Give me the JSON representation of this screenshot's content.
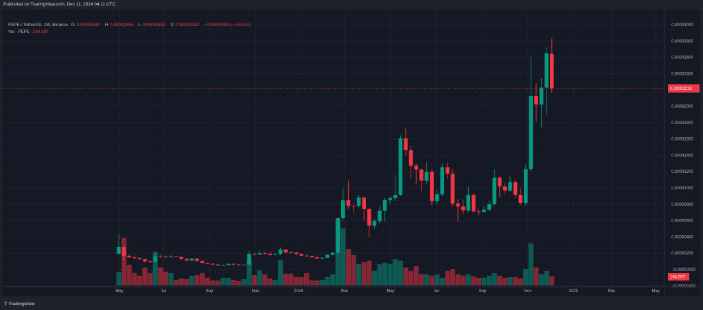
{
  "published": "Published on TradingView.com, Dec 11, 2024 04:11 UTC",
  "legend": {
    "symbol": "PEPE / TetherUS, 1W, Binance",
    "o_label": "O",
    "o": "0.00002642",
    "h_label": "H",
    "h": "0.00002836",
    "l_label": "L",
    "l": "0.00002162",
    "c_label": "C",
    "c": "0.00002219",
    "change": "−0.00000423 (−16.01%)",
    "vol_label": "Vol · PEPE",
    "vol": "164.39T"
  },
  "price_axis": {
    "ticks": [
      {
        "value": 3e-05,
        "label": "0.00003000"
      },
      {
        "value": 2.8e-05,
        "label": "0.00002800"
      },
      {
        "value": 2.6e-05,
        "label": "0.00002600"
      },
      {
        "value": 2.4e-05,
        "label": "0.00002400"
      },
      {
        "value": 2e-05,
        "label": "0.00002000"
      },
      {
        "value": 1.8e-05,
        "label": "0.00001800"
      },
      {
        "value": 1.6e-05,
        "label": "0.00001600"
      },
      {
        "value": 1.4e-05,
        "label": "0.00001400"
      },
      {
        "value": 1.2e-05,
        "label": "0.00001200"
      },
      {
        "value": 1e-05,
        "label": "0.00001000"
      },
      {
        "value": 8e-06,
        "label": "0.00000800"
      },
      {
        "value": 6e-06,
        "label": "0.00000600"
      },
      {
        "value": 4e-06,
        "label": "0.00000400"
      },
      {
        "value": 2e-06,
        "label": "0.00000200"
      },
      {
        "value": 0,
        "label": "−0.00000000"
      },
      {
        "value": -2e-06,
        "label": "−0.00000200"
      }
    ],
    "last_price": 2.219e-05,
    "last_price_label": "0.00002219",
    "volume_label": "164.39T"
  },
  "time_axis": {
    "ticks": [
      "May",
      "Jul",
      "Sep",
      "Nov",
      "2024",
      "Mar",
      "May",
      "Jul",
      "Sep",
      "Nov",
      "2025",
      "Mar",
      "May"
    ]
  },
  "colors": {
    "up": "#089981",
    "down": "#f23645",
    "background": "#151924"
  },
  "brand": "TradingView",
  "chart_data": {
    "type": "candlestick",
    "interval": "1W",
    "fields": [
      "open",
      "high",
      "low",
      "close",
      "volume_T"
    ],
    "candles": [
      [
        1.93e-06,
        4.37e-06,
        1.9e-06,
        2.77e-06,
        240
      ],
      [
        2.77e-06,
        2.9e-06,
        1.09e-06,
        1.68e-06,
        873
      ],
      [
        1.68e-06,
        1.85e-06,
        1.4e-06,
        1.5e-06,
        380
      ],
      [
        1.5e-06,
        1.6e-06,
        1.3e-06,
        1.4e-06,
        228
      ],
      [
        1.4e-06,
        1.5e-06,
        1.18e-06,
        1.25e-06,
        177
      ],
      [
        1.25e-06,
        1.3e-06,
        9e-07,
        1e-06,
        329
      ],
      [
        1e-06,
        1.1e-06,
        8.5e-07,
        9.5e-07,
        228
      ],
      [
        9.5e-07,
        2e-06,
        9e-07,
        1.62e-06,
        620
      ],
      [
        1.62e-06,
        1.8e-06,
        1.45e-06,
        1.6e-06,
        329
      ],
      [
        1.6e-06,
        1.75e-06,
        1.4e-06,
        1.58e-06,
        253
      ],
      [
        1.58e-06,
        1.8e-06,
        1.45e-06,
        1.6e-06,
        228
      ],
      [
        1.6e-06,
        1.65e-06,
        1.48e-06,
        1.55e-06,
        101
      ],
      [
        1.55e-06,
        1.6e-06,
        1.2e-06,
        1.3e-06,
        126
      ],
      [
        1.3e-06,
        1.35e-06,
        1.05e-06,
        1.12e-06,
        114
      ],
      [
        1.12e-06,
        1.4e-06,
        1.08e-06,
        1.34e-06,
        177
      ],
      [
        1.34e-06,
        1.4e-06,
        1e-06,
        1.05e-06,
        190
      ],
      [
        1.05e-06,
        1.1e-06,
        7.5e-07,
        8e-07,
        228
      ],
      [
        8e-07,
        8.5e-07,
        6.5e-07,
        7e-07,
        139
      ],
      [
        7e-07,
        7.5e-07,
        5.8e-07,
        6.2e-07,
        89
      ],
      [
        6.2e-07,
        6.6e-07,
        4.5e-07,
        5e-07,
        89
      ],
      [
        5e-07,
        6e-07,
        4.5e-07,
        5.5e-07,
        139
      ],
      [
        5.5e-07,
        7.5e-07,
        5.2e-07,
        7e-07,
        139
      ],
      [
        7e-07,
        7.4e-07,
        5.8e-07,
        6.2e-07,
        101
      ],
      [
        6.2e-07,
        6.6e-07,
        5e-07,
        5.5e-07,
        76
      ],
      [
        5.5e-07,
        6.6e-07,
        5.2e-07,
        6e-07,
        114
      ],
      [
        6e-07,
        2.3e-06,
        5.5e-07,
        1.9e-06,
        493
      ],
      [
        1.9e-06,
        2.05e-06,
        1.75e-06,
        1.85e-06,
        190
      ],
      [
        1.85e-06,
        2.35e-06,
        1.8e-06,
        2e-06,
        278
      ],
      [
        2e-06,
        2.1e-06,
        1.85e-06,
        1.95e-06,
        202
      ],
      [
        1.95e-06,
        2.05e-06,
        1.72e-06,
        1.8e-06,
        126
      ],
      [
        1.8e-06,
        1.98e-06,
        1.75e-06,
        1.9e-06,
        101
      ],
      [
        1.9e-06,
        2.7e-06,
        1.8e-06,
        2.45e-06,
        468
      ],
      [
        2.45e-06,
        2.5e-06,
        2e-06,
        2.1e-06,
        215
      ],
      [
        2.1e-06,
        2.25e-06,
        1.95e-06,
        2.08e-06,
        215
      ],
      [
        2.08e-06,
        2.15e-06,
        1.8e-06,
        1.9e-06,
        152
      ],
      [
        1.9e-06,
        2e-06,
        1.62e-06,
        1.7e-06,
        152
      ],
      [
        1.7e-06,
        1.8e-06,
        1.58e-06,
        1.65e-06,
        228
      ],
      [
        1.65e-06,
        1.7e-06,
        1.45e-06,
        1.5e-06,
        89
      ],
      [
        1.5e-06,
        1.55e-06,
        1.28e-06,
        1.35e-06,
        89
      ],
      [
        1.35e-06,
        1.5e-06,
        1.3e-06,
        1.45e-06,
        101
      ],
      [
        1.45e-06,
        1.9e-06,
        1.4e-06,
        1.8e-06,
        152
      ],
      [
        1.8e-06,
        2.15e-06,
        1.75e-06,
        2.05e-06,
        202
      ],
      [
        2.05e-06,
        6.4e-06,
        2e-06,
        6.3e-06,
        1214
      ],
      [
        6.3e-06,
        9.92e-06,
        6e-06,
        8.51e-06,
        1050
      ],
      [
        8.51e-06,
        1.09e-05,
        7.4e-06,
        7.81e-06,
        670
      ],
      [
        7.81e-06,
        8.1e-06,
        7e-06,
        7.8e-06,
        557
      ],
      [
        7.8e-06,
        9.15e-06,
        7.6e-06,
        8.82e-06,
        392
      ],
      [
        8.82e-06,
        8.9e-06,
        6e-06,
        7.4e-06,
        430
      ],
      [
        7.4e-06,
        7.6e-06,
        3.97e-06,
        5.38e-06,
        455
      ],
      [
        5.38e-06,
        6.2e-06,
        5e-06,
        5.94e-06,
        266
      ],
      [
        5.94e-06,
        7.8e-06,
        5.6e-06,
        7.2e-06,
        392
      ],
      [
        7.2e-06,
        8.8e-06,
        5.9e-06,
        8.51e-06,
        417
      ],
      [
        8.51e-06,
        9e-06,
        8e-06,
        8.74e-06,
        392
      ],
      [
        8.74e-06,
        1.16e-05,
        8.4e-06,
        9.16e-06,
        481
      ],
      [
        9.16e-06,
        1.644e-05,
        9e-06,
        1.608e-05,
        455
      ],
      [
        1.608e-05,
        1.734e-05,
        1.4e-05,
        1.462e-05,
        329
      ],
      [
        1.462e-05,
        1.52e-05,
        1.118e-05,
        1.272e-05,
        266
      ],
      [
        1.272e-05,
        1.3e-05,
        1.05e-05,
        1.225e-05,
        354
      ],
      [
        1.225e-05,
        1.24e-05,
        9.6e-06,
        1.089e-05,
        202
      ],
      [
        1.089e-05,
        1.31e-05,
        1.05e-05,
        1.196e-05,
        202
      ],
      [
        1.196e-05,
        1.23e-05,
        7.9e-06,
        8.38e-06,
        177
      ],
      [
        8.38e-06,
        9.8e-06,
        7.9e-06,
        9.22e-06,
        202
      ],
      [
        9.22e-06,
        1.3e-05,
        9e-06,
        1.252e-05,
        139
      ],
      [
        1.252e-05,
        1.31e-05,
        1.11e-05,
        1.174e-05,
        266
      ],
      [
        1.174e-05,
        1.23e-05,
        7.7e-06,
        8.09e-06,
        304
      ],
      [
        8.09e-06,
        8.6e-06,
        5.85e-06,
        7.73e-06,
        202
      ],
      [
        7.73e-06,
        8.6e-06,
        6.8e-06,
        7.25e-06,
        177
      ],
      [
        7.25e-06,
        1.02e-05,
        7e-06,
        9.13e-06,
        202
      ],
      [
        9.13e-06,
        9.35e-06,
        7e-06,
        7.11e-06,
        164
      ],
      [
        7.11e-06,
        7.45e-06,
        6.6e-06,
        7.05e-06,
        139
      ],
      [
        7.05e-06,
        7.7e-06,
        7e-06,
        7.33e-06,
        139
      ],
      [
        7.33e-06,
        8.5e-06,
        7.15e-06,
        8.01e-06,
        177
      ],
      [
        8.01e-06,
        1.225e-05,
        7.8e-06,
        1.126e-05,
        228
      ],
      [
        1.126e-05,
        1.14e-05,
        8.9e-06,
        1.019e-05,
        177
      ],
      [
        1.019e-05,
        1.06e-05,
        9.2e-06,
        9.69e-06,
        139
      ],
      [
        9.69e-06,
        1.14e-05,
        9.5e-06,
        1.07e-05,
        152
      ],
      [
        1.07e-05,
        1.1e-05,
        8.8e-06,
        9.16e-06,
        152
      ],
      [
        9.16e-06,
        1e-05,
        7.9e-06,
        8.15e-06,
        126
      ],
      [
        8.15e-06,
        1.29e-05,
        7.8e-06,
        1.23e-05,
        304
      ],
      [
        1.23e-05,
        2.602e-05,
        1.2e-05,
        2.126e-05,
        772
      ],
      [
        2.126e-05,
        2.282e-05,
        1.815e-05,
        2.022e-05,
        329
      ],
      [
        2.022e-05,
        2.345e-05,
        1.734e-05,
        2.23e-05,
        202
      ],
      [
        2.23e-05,
        2.723e-05,
        1.894e-05,
        2.65e-05,
        266
      ],
      [
        2.642e-05,
        2.836e-05,
        2.162e-05,
        2.219e-05,
        164.39
      ]
    ]
  }
}
